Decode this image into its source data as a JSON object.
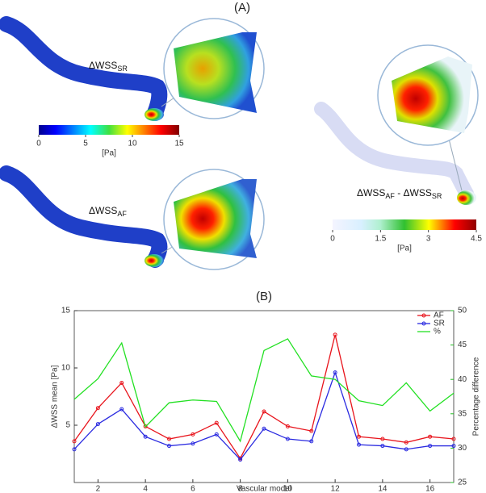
{
  "panel_a": {
    "title": "(A)",
    "labels": [
      [
        "ΔWSS",
        "SR"
      ],
      [
        "ΔWSS",
        "AF"
      ],
      [
        "ΔWSS",
        "AF",
        " - ΔWSS",
        "SR"
      ]
    ],
    "colorbar_1": {
      "lim": [
        0,
        15
      ],
      "ticks": [
        0,
        5,
        10,
        15
      ],
      "unit": "[Pa]"
    },
    "colorbar_2": {
      "lim": [
        0,
        4.5
      ],
      "ticks": [
        0,
        1.5,
        3,
        4.5
      ],
      "unit": "[Pa]"
    }
  },
  "chart_data": {
    "type": "line",
    "title": "(B)",
    "x_label": "Vascular model",
    "y_label": "ΔWSS mean [Pa]",
    "y2_label": "Percentage difference",
    "x": [
      1,
      2,
      3,
      4,
      5,
      6,
      7,
      8,
      9,
      10,
      11,
      12,
      13,
      14,
      15,
      16,
      17
    ],
    "xlim": [
      1,
      17
    ],
    "xticks": [
      2,
      4,
      6,
      8,
      10,
      12,
      14,
      16
    ],
    "ylim": [
      0,
      15
    ],
    "yticks": [
      5,
      10,
      15
    ],
    "y2lim": [
      25,
      50
    ],
    "y2ticks": [
      25,
      30,
      35,
      40,
      45,
      50
    ],
    "legend": "upper right",
    "series": [
      {
        "name": "AF",
        "color": "#e8141c",
        "marker": true,
        "values": [
          3.6,
          6.5,
          8.7,
          4.9,
          3.8,
          4.2,
          5.2,
          2.1,
          6.2,
          4.9,
          4.5,
          12.9,
          4.0,
          3.8,
          3.5,
          4.0,
          3.8
        ]
      },
      {
        "name": "SR",
        "color": "#2a2ae0",
        "marker": true,
        "values": [
          2.9,
          5.1,
          6.4,
          4.0,
          3.2,
          3.4,
          4.2,
          2.0,
          4.7,
          3.8,
          3.6,
          9.6,
          3.3,
          3.2,
          2.9,
          3.2,
          3.2
        ]
      },
      {
        "name": "%",
        "color": "#22e022",
        "marker": false,
        "axis": "y2",
        "values": [
          37.1,
          40.1,
          45.3,
          33.1,
          36.6,
          37.0,
          36.8,
          31.0,
          44.2,
          45.9,
          40.5,
          40.0,
          36.9,
          36.2,
          39.5,
          35.4,
          38.0
        ]
      }
    ]
  }
}
